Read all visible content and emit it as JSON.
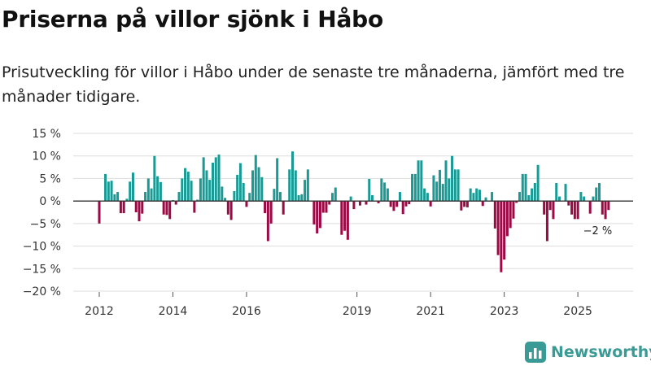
{
  "title": "Priserna på villor sjönk i Håbo",
  "subtitle": "Prisutveckling för villor i Håbo under de senaste tre månaderna, jämfört med tre månader tidigare.",
  "brand": {
    "name": "Newsworthy",
    "icon": "bar-chart-logo-icon"
  },
  "colors": {
    "positive": "#1a9a94",
    "negative": "#9b0a45",
    "grid": "#dddddd",
    "zero": "#333333"
  },
  "chart_data": {
    "type": "bar",
    "title": "Priserna på villor sjönk i Håbo",
    "ylabel": "",
    "xlabel": "",
    "ylim": [
      -20,
      15
    ],
    "yticks": [
      15,
      10,
      5,
      0,
      -5,
      -10,
      -15,
      -20
    ],
    "ytick_labels": [
      "15 %",
      "10 %",
      "5 %",
      "0 %",
      "−5 %",
      "−10 %",
      "−15 %",
      "−20 %"
    ],
    "x_start": "2012-01",
    "xticks": [
      {
        "label": "2012",
        "index": 0
      },
      {
        "label": "2014",
        "index": 24
      },
      {
        "label": "2016",
        "index": 48
      },
      {
        "label": "2019",
        "index": 84
      },
      {
        "label": "2021",
        "index": 108
      },
      {
        "label": "2023",
        "index": 132
      },
      {
        "label": "2025",
        "index": 156
      }
    ],
    "annotation": {
      "label": "−2 %",
      "index": 164
    },
    "values": [
      -5,
      0,
      6,
      4.3,
      4.5,
      1.5,
      2,
      -2.7,
      -2.7,
      0.5,
      4.3,
      6.3,
      -2.5,
      -4.5,
      -2.8,
      2,
      5,
      2.8,
      10,
      5.5,
      4.2,
      -3,
      -3.1,
      -4,
      0.2,
      -0.8,
      2,
      5,
      7.3,
      6.5,
      4.5,
      -2.6,
      0.3,
      5,
      9.7,
      6.8,
      4.7,
      8.5,
      9.7,
      10.3,
      3.2,
      0.7,
      -3,
      -4.2,
      2.2,
      5.8,
      8.4,
      4,
      -1.3,
      1.8,
      6.8,
      10.2,
      7.5,
      5.3,
      -2.7,
      -8.9,
      -5,
      2.7,
      9.5,
      2,
      -3,
      0,
      7,
      11,
      6.8,
      1.3,
      1.5,
      4.7,
      7,
      0,
      -5.2,
      -7.2,
      -6,
      -2.6,
      -2.6,
      -0.8,
      1.8,
      3,
      0,
      -7.5,
      -6.6,
      -8.6,
      1,
      -1.8,
      0,
      -1,
      0,
      -0.8,
      4.9,
      1.3,
      0,
      -0.5,
      5,
      4.1,
      2.8,
      -1.3,
      -2.2,
      -1.3,
      2,
      -2.9,
      -1.2,
      -0.7,
      6,
      6,
      9,
      9,
      2.8,
      1.8,
      -1.2,
      5.7,
      4.3,
      6.9,
      3.8,
      9,
      5,
      10,
      7,
      7,
      -2.1,
      -1.3,
      -1.4,
      2.8,
      1.8,
      2.8,
      2.5,
      -1.1,
      0.8,
      0,
      2,
      -6.1,
      -12,
      -15.8,
      -13,
      -7.8,
      -6,
      -3.9,
      -0.4,
      2,
      6,
      6,
      1.3,
      2.8,
      4,
      8,
      0,
      -3,
      -8.9,
      -2,
      -4,
      4,
      1,
      0,
      3.8,
      -1,
      -3,
      -4,
      -4,
      2,
      1,
      0,
      -2.8,
      1,
      3,
      4,
      -3,
      -4,
      -2
    ]
  }
}
